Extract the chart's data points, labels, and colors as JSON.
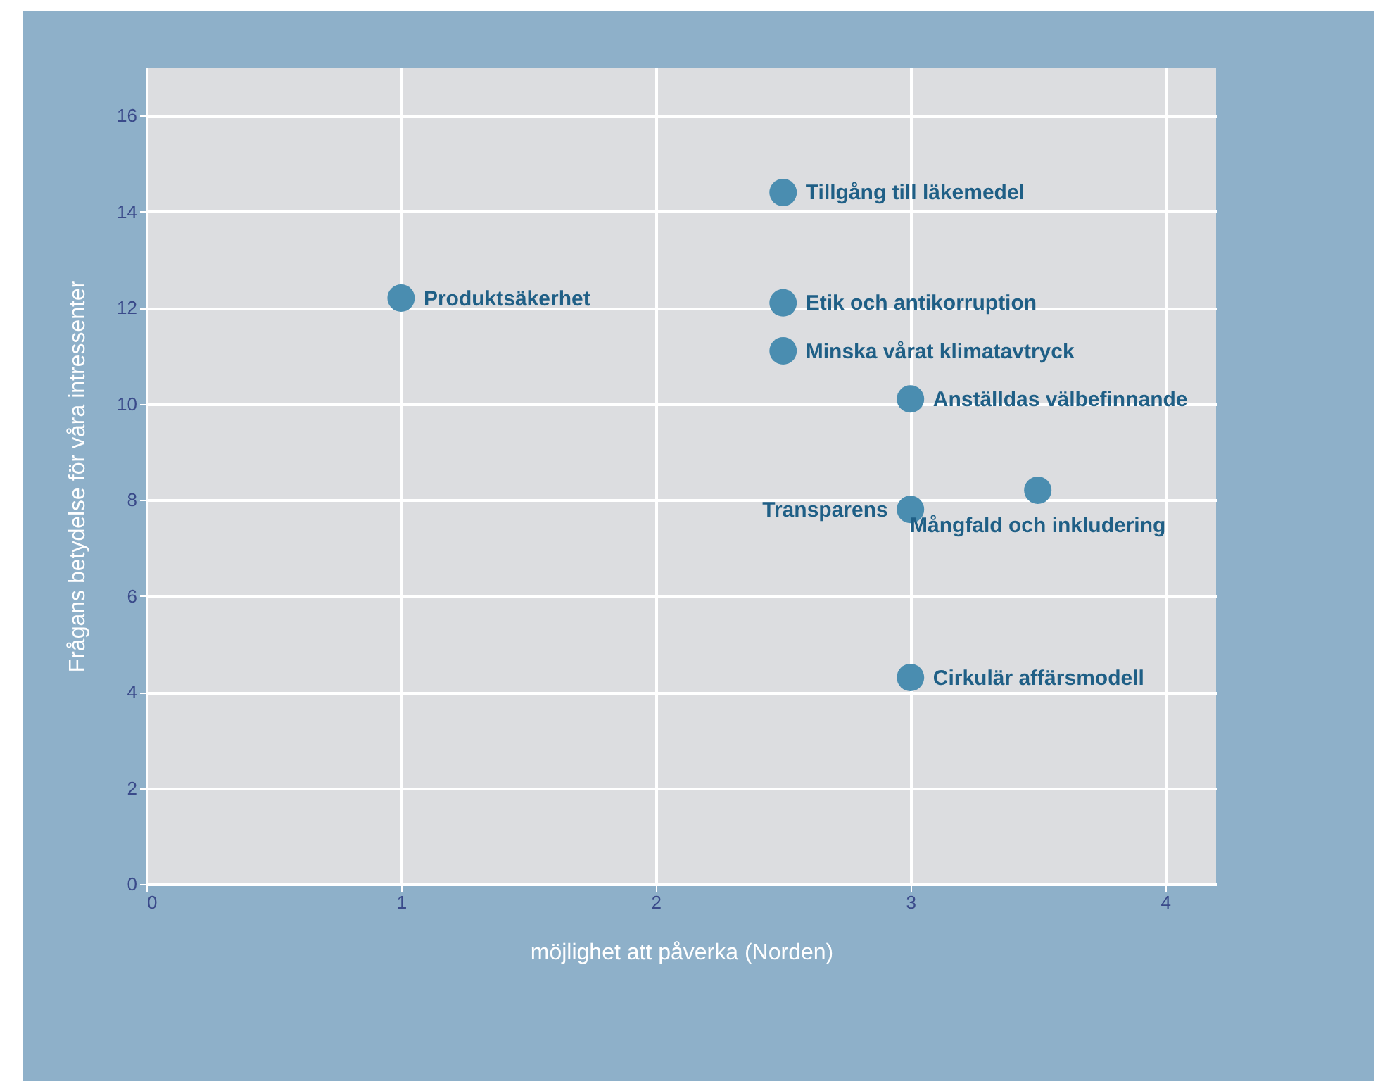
{
  "chart_data": {
    "type": "scatter",
    "xlabel": "möjlighet att påverka (Norden)",
    "ylabel": "Frågans betydelse för våra intressenter",
    "x": [
      1,
      2.5,
      2.5,
      2.5,
      3,
      3,
      3.5,
      3
    ],
    "series": [
      {
        "color": "#4a8db0",
        "values": [
          12.2,
          14.4,
          12.1,
          11.1,
          10.1,
          7.8,
          8.2,
          4.3
        ]
      }
    ],
    "annotations": [
      {
        "text": "Produktsäkerhet",
        "x": 1,
        "y": 12.2
      },
      {
        "text": "Tillgång till läkemedel",
        "x": 2.5,
        "y": 14.4
      },
      {
        "text": "Etik och antikorruption",
        "x": 2.5,
        "y": 12.1
      },
      {
        "text": "Minska vårat klimatavtryck",
        "x": 2.5,
        "y": 11.1
      },
      {
        "text": "Anställdas välbefinnande",
        "x": 3,
        "y": 10.1
      },
      {
        "text": "Transparens",
        "x": 3,
        "y": 7.8
      },
      {
        "text": "Mångfald och inkludering",
        "x": 3.5,
        "y": 8.2
      },
      {
        "text": "Cirkulär affärsmodell",
        "x": 3,
        "y": 4.3
      }
    ],
    "xlim": [
      0,
      4.2
    ],
    "xticks": [
      0,
      1,
      2,
      3,
      4
    ],
    "ylim": [
      0,
      17
    ],
    "yticks": [
      0,
      2,
      4,
      6,
      8,
      10,
      12,
      14,
      16
    ],
    "grid": true,
    "marker": "circle"
  }
}
